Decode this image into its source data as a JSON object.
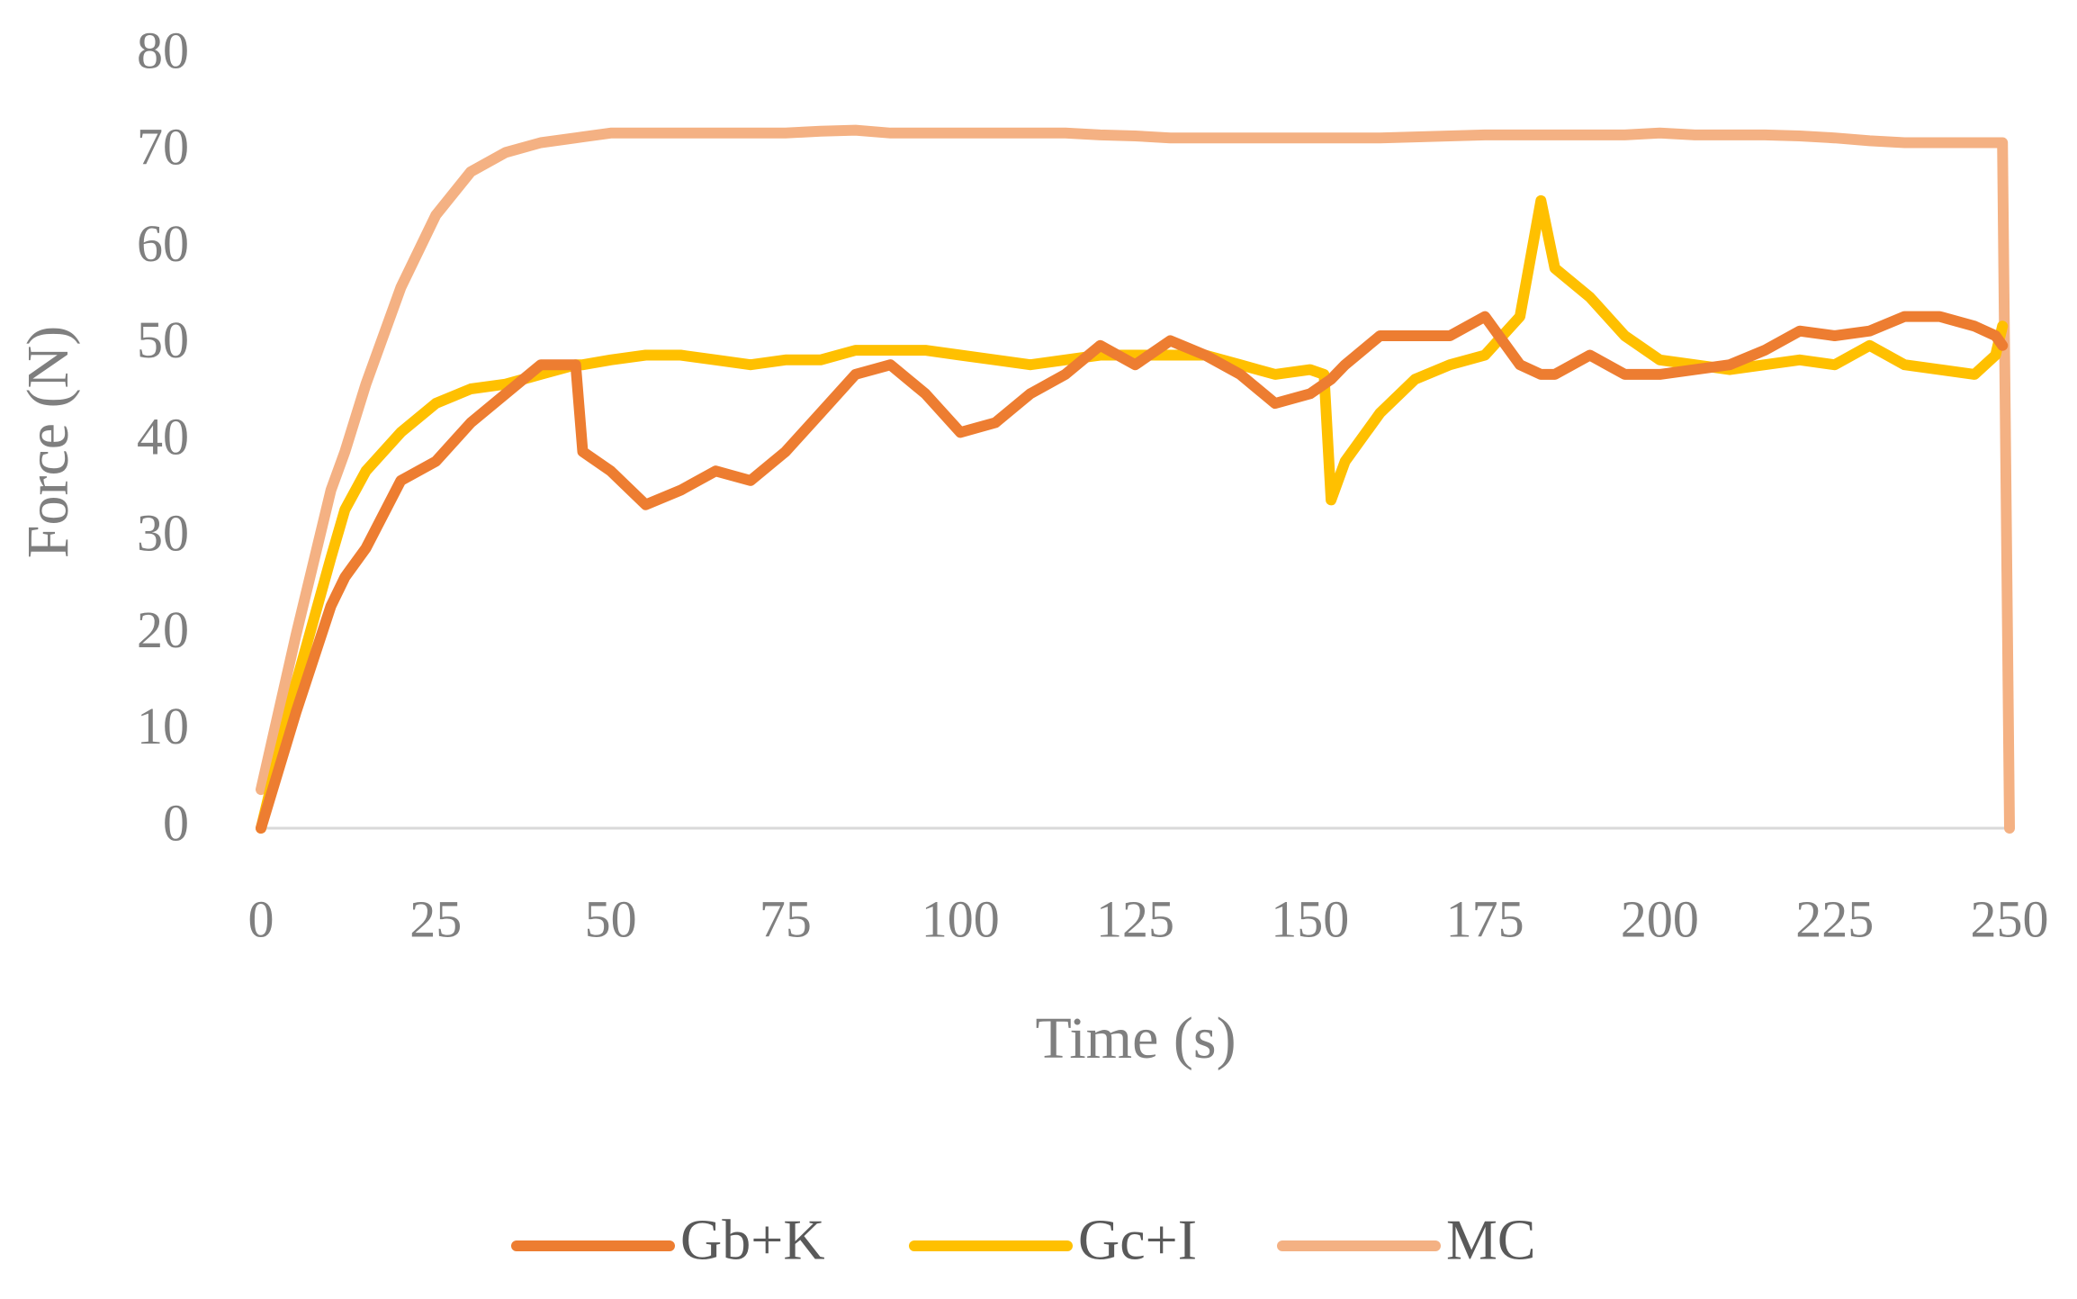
{
  "chart_data": {
    "type": "line",
    "x_label": "Time (s)",
    "y_label": "Force (N)",
    "x": [
      0,
      5,
      10,
      12,
      15,
      20,
      25,
      30,
      35,
      40,
      45,
      46,
      50,
      55,
      60,
      65,
      70,
      75,
      80,
      85,
      90,
      95,
      100,
      105,
      110,
      115,
      120,
      125,
      130,
      135,
      140,
      145,
      150,
      152,
      153,
      155,
      160,
      165,
      170,
      175,
      180,
      183,
      185,
      190,
      195,
      200,
      205,
      210,
      215,
      220,
      225,
      230,
      235,
      240,
      245,
      248,
      249,
      250
    ],
    "series": [
      {
        "name": "Gb+K",
        "color": "#ed7d31",
        "values": [
          0,
          12,
          23,
          26,
          29,
          36,
          38,
          42,
          45,
          48,
          48,
          39,
          37,
          33.5,
          35,
          37,
          36,
          39,
          43,
          47,
          48,
          45,
          41,
          42,
          45,
          47,
          50,
          48,
          50.5,
          49,
          47,
          44,
          45,
          46,
          46.5,
          48,
          51,
          51,
          51,
          53,
          48,
          47,
          47,
          49,
          47,
          47,
          47.5,
          48,
          49.5,
          51.5,
          51,
          51.5,
          53,
          53,
          52,
          51,
          50,
          null
        ]
      },
      {
        "name": "Gc+I",
        "color": "#ffc000",
        "values": [
          0,
          15,
          28,
          33,
          37,
          41,
          44,
          45.5,
          46,
          47,
          48,
          48,
          48.5,
          49,
          49,
          48.5,
          48,
          48.5,
          48.5,
          49.5,
          49.5,
          49.5,
          49,
          48.5,
          48,
          48.5,
          49,
          49,
          49,
          49,
          48,
          47,
          47.5,
          47,
          34,
          38,
          43,
          46.5,
          48,
          49,
          53,
          65,
          58,
          55,
          51,
          48.5,
          48,
          47.5,
          48,
          48.5,
          48,
          50,
          48,
          47.5,
          47,
          49,
          52,
          null
        ]
      },
      {
        "name": "MC",
        "color": "#f4b183",
        "values": [
          4,
          20,
          35,
          39,
          46,
          56,
          63.5,
          68,
          70,
          71,
          71.5,
          71.6,
          72,
          72,
          72,
          72,
          72,
          72,
          72.2,
          72.3,
          72,
          72,
          72,
          72,
          72,
          72,
          71.8,
          71.7,
          71.5,
          71.5,
          71.5,
          71.5,
          71.5,
          71.5,
          71.5,
          71.5,
          71.5,
          71.6,
          71.7,
          71.8,
          71.8,
          71.8,
          71.8,
          71.8,
          71.8,
          72,
          71.8,
          71.8,
          71.8,
          71.7,
          71.5,
          71.2,
          71,
          71,
          71,
          71,
          71,
          0
        ]
      }
    ],
    "xlim": [
      0,
      250
    ],
    "xticks": [
      0,
      25,
      50,
      75,
      100,
      125,
      150,
      175,
      200,
      225,
      250
    ],
    "ylim": [
      0,
      80
    ],
    "yticks": [
      0,
      10,
      20,
      30,
      40,
      50,
      60,
      70,
      80
    ],
    "grid": false,
    "legend": "bottom"
  }
}
